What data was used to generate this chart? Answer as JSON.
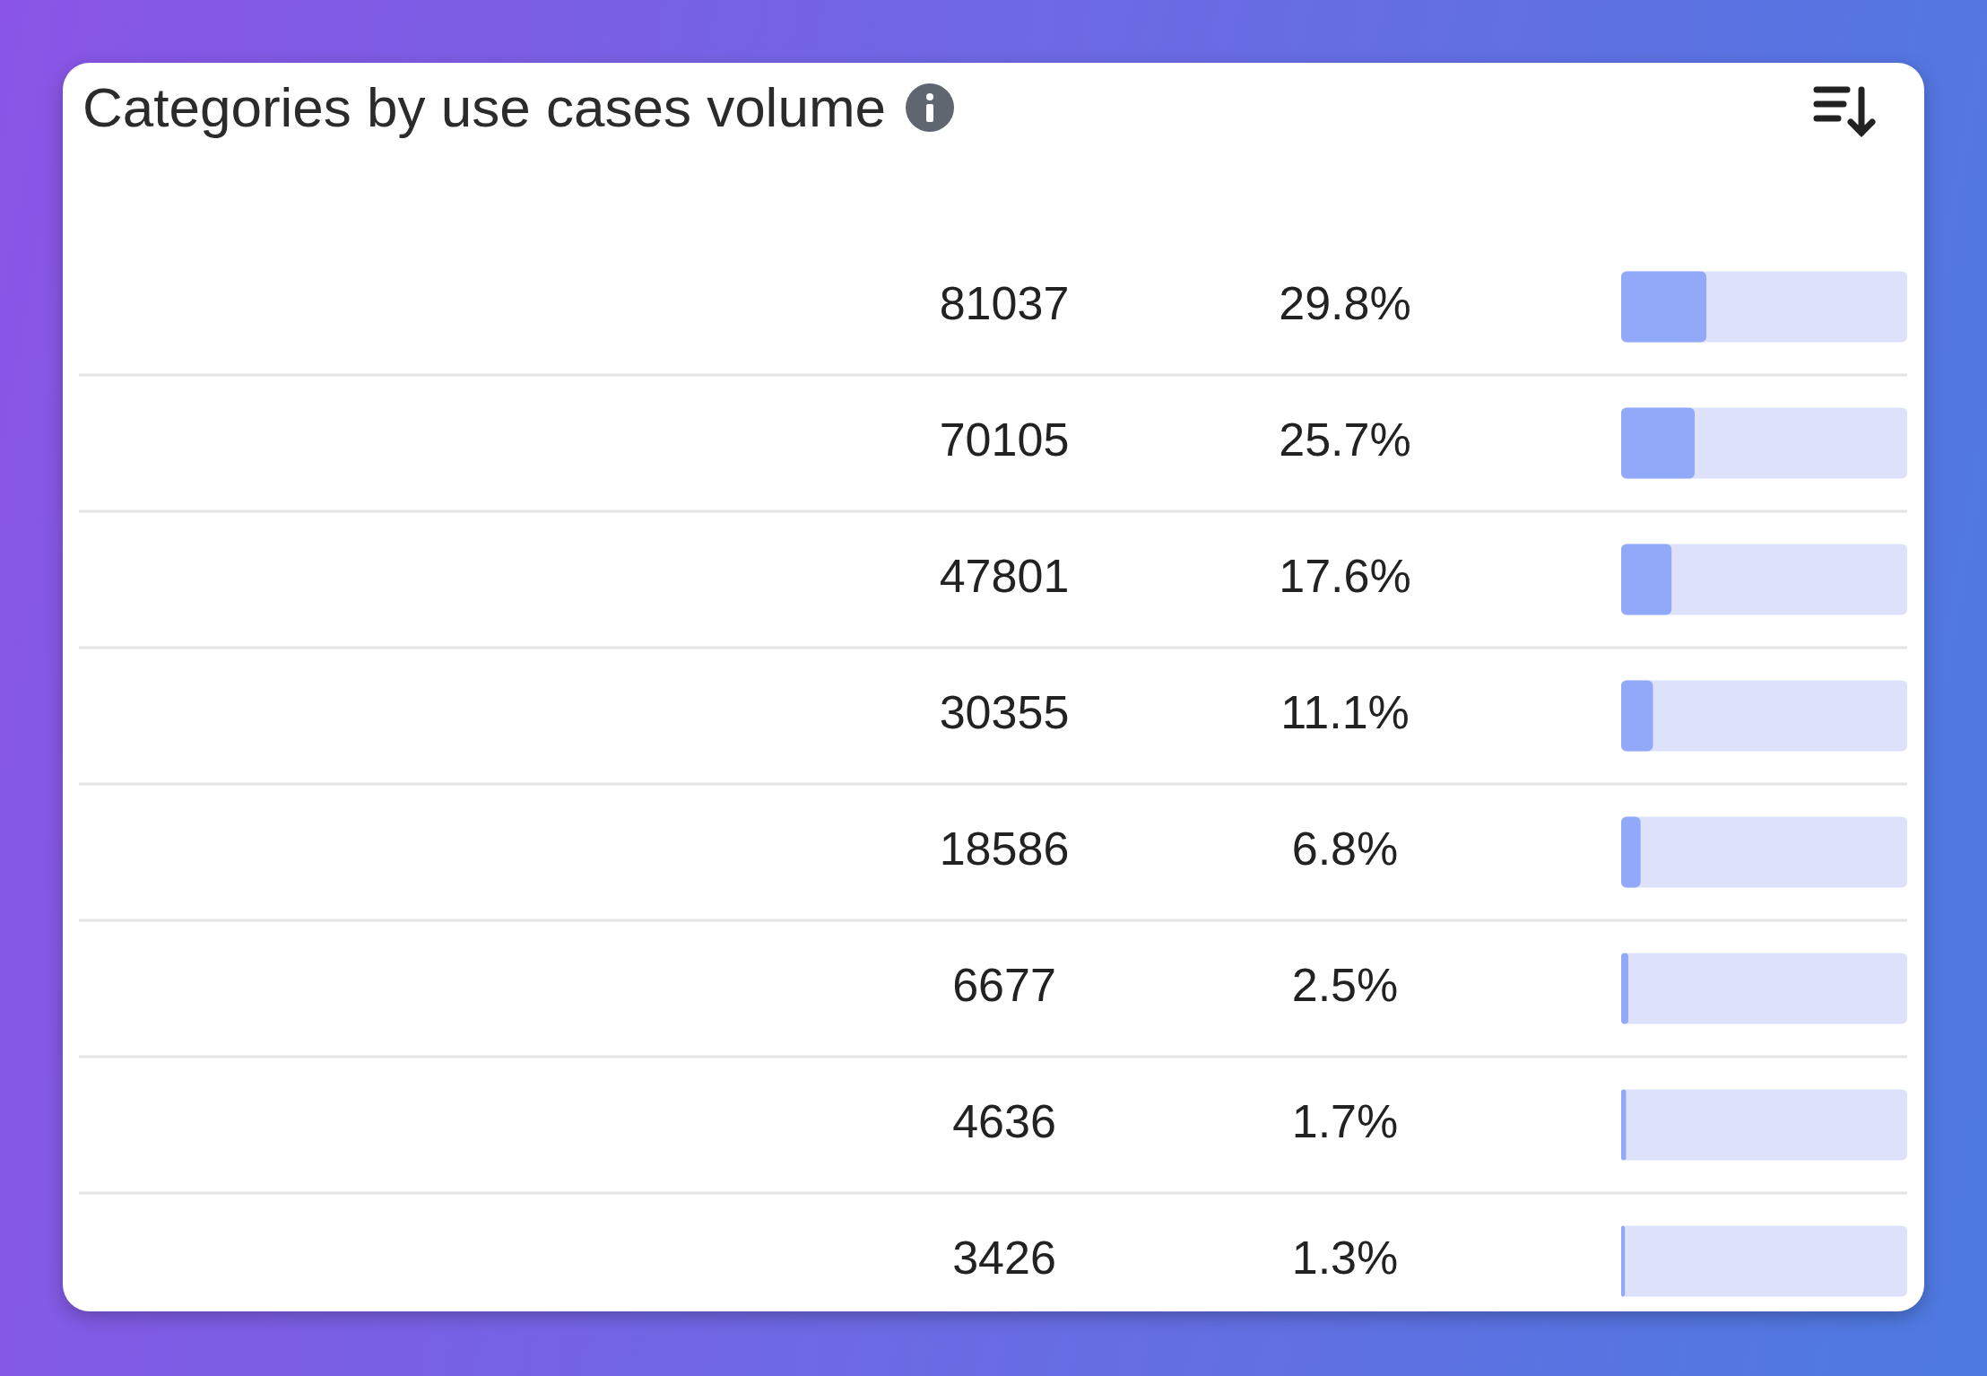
{
  "chart_data": {
    "type": "bar",
    "title": "Categories by use cases volume",
    "orientation": "horizontal",
    "categories": [
      null,
      null,
      null,
      null,
      null,
      null,
      null,
      null
    ],
    "values": [
      29.8,
      25.7,
      17.6,
      11.1,
      6.8,
      2.5,
      1.7,
      1.3
    ],
    "value_labels": [
      "29.8%",
      "25.7%",
      "17.6%",
      "11.1%",
      "6.8%",
      "2.5%",
      "1.7%",
      "1.3%"
    ],
    "annotations": [
      "81037",
      "70105",
      "47801",
      "30355",
      "18586",
      "6677",
      "4636",
      "3426"
    ],
    "color": "#92a8f8",
    "xlim": [
      0,
      100
    ],
    "grid": "y",
    "legend": false,
    "tick_labels": false
  }
}
